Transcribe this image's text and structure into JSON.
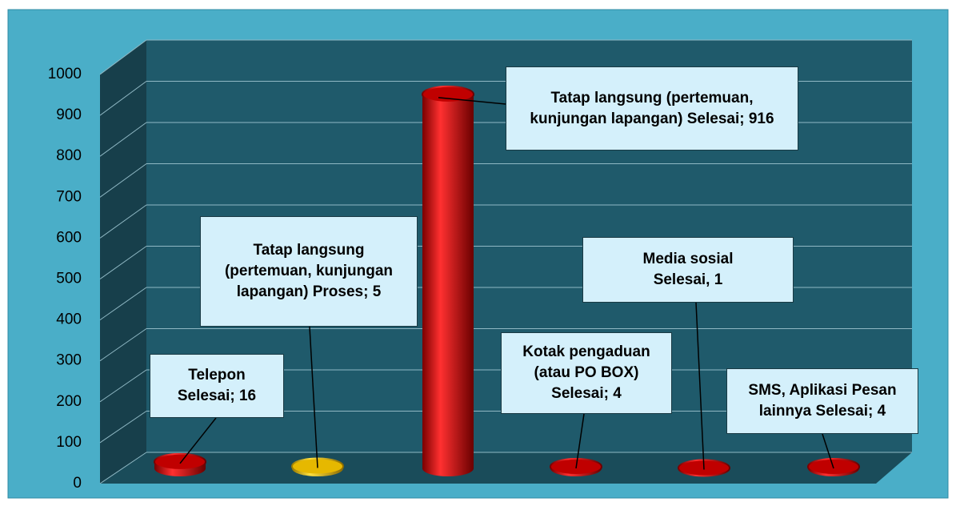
{
  "chart_data": {
    "type": "bar",
    "values": [
      16,
      5,
      916,
      4,
      1,
      4
    ],
    "value_labels": [
      "Telepon Selesai; 16",
      "Tatap langsung (pertemuan, kunjungan lapangan) Proses; 5",
      "Tatap langsung (pertemuan, kunjungan lapangan) Selesai; 916",
      "Kotak pengaduan (atau PO BOX) Selesai; 4",
      "Media sosial Selesai, 1",
      "SMS, Aplikasi Pesan lainnya Selesai; 4"
    ],
    "colors": [
      "#c00000",
      "#e6b800",
      "#c00000",
      "#c00000",
      "#c00000",
      "#c00000"
    ],
    "ylim": [
      0,
      1000
    ],
    "yticks": [
      0,
      100,
      200,
      300,
      400,
      500,
      600,
      700,
      800,
      900,
      1000
    ],
    "grid": true
  }
}
